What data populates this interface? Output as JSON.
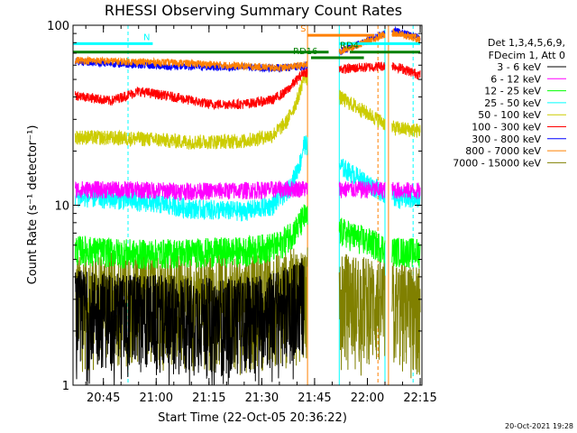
{
  "chart_data": {
    "type": "line",
    "title": "RHESSI Observing Summary Count Rates",
    "xlabel": "Start Time (22-Oct-05 20:36:22)",
    "ylabel": "Count Rate (s⁻¹ detector⁻¹)",
    "y_scale": "log",
    "ylim": [
      1,
      100
    ],
    "xlim": [
      "20:36:22",
      "22:15:30"
    ],
    "x_ticks": [
      "20:45",
      "21:00",
      "21:15",
      "21:30",
      "21:45",
      "22:00",
      "22:15"
    ],
    "y_ticks": [
      "1",
      "10",
      "100"
    ],
    "grid": false,
    "legend_position": "right",
    "legend_header": [
      "Det 1,3,4,5,6,9,",
      "FDecim 1, Att 0"
    ],
    "data_gaps": [
      [
        "21:43",
        "21:52"
      ],
      [
        "22:05",
        "22:07"
      ]
    ],
    "series": [
      {
        "name": "3 - 6 keV",
        "color": "#000000",
        "baseline": 2.6,
        "noise": 0.35,
        "points": [
          [
            "20:37",
            2.8
          ],
          [
            "20:50",
            2.7
          ],
          [
            "21:05",
            2.6
          ],
          [
            "21:20",
            2.5
          ],
          [
            "21:35",
            2.8
          ],
          [
            "21:42",
            3.3
          ]
        ]
      },
      {
        "name": "6 - 12 keV",
        "color": "#ff00ff",
        "baseline": 12.3,
        "noise": 0.07,
        "points": [
          [
            "20:37",
            12.3
          ],
          [
            "20:55",
            12.2
          ],
          [
            "21:10",
            12.0
          ],
          [
            "21:25",
            12.1
          ],
          [
            "21:40",
            12.4
          ],
          [
            "22:07",
            12.2
          ],
          [
            "22:15",
            12.0
          ]
        ]
      },
      {
        "name": "12 - 25 keV",
        "color": "#00ff00",
        "baseline": 5.6,
        "noise": 0.12,
        "points": [
          [
            "20:37",
            5.7
          ],
          [
            "20:55",
            5.4
          ],
          [
            "21:10",
            5.5
          ],
          [
            "21:25",
            5.6
          ],
          [
            "21:35",
            6.0
          ],
          [
            "21:40",
            7.5
          ],
          [
            "21:42",
            8.6
          ],
          [
            "22:07",
            5.6
          ],
          [
            "22:15",
            5.5
          ]
        ]
      },
      {
        "name": "25 - 50 keV",
        "color": "#00ffff",
        "baseline": 11.0,
        "noise": 0.08,
        "points": [
          [
            "20:37",
            11.2
          ],
          [
            "20:50",
            10.8
          ],
          [
            "21:00",
            10.3
          ],
          [
            "21:10",
            9.6
          ],
          [
            "21:25",
            9.3
          ],
          [
            "21:33",
            10.0
          ],
          [
            "21:38",
            12.5
          ],
          [
            "21:41",
            17.5
          ],
          [
            "21:42",
            22.0
          ],
          [
            "22:07",
            11.0
          ],
          [
            "22:15",
            10.8
          ]
        ]
      },
      {
        "name": "50 - 100 keV",
        "color": "#cccc00",
        "baseline": 24.0,
        "noise": 0.06,
        "points": [
          [
            "20:37",
            24.0
          ],
          [
            "20:55",
            23.5
          ],
          [
            "21:10",
            22.5
          ],
          [
            "21:25",
            22.8
          ],
          [
            "21:33",
            24.5
          ],
          [
            "21:37",
            29.0
          ],
          [
            "21:40",
            38.0
          ],
          [
            "21:42",
            52.0
          ],
          [
            "22:07",
            27.0
          ],
          [
            "22:15",
            26.0
          ]
        ]
      },
      {
        "name": "100 - 300 keV",
        "color": "#ff0000",
        "baseline": 40.0,
        "noise": 0.04,
        "points": [
          [
            "20:37",
            41.0
          ],
          [
            "20:47",
            38.0
          ],
          [
            "20:55",
            43.0
          ],
          [
            "21:05",
            40.0
          ],
          [
            "21:15",
            36.5
          ],
          [
            "21:25",
            36.5
          ],
          [
            "21:33",
            38.5
          ],
          [
            "21:37",
            43.0
          ],
          [
            "21:40",
            50.0
          ],
          [
            "21:42",
            55.0
          ],
          [
            "22:07",
            60.0
          ],
          [
            "22:15",
            53.0
          ]
        ]
      },
      {
        "name": "300 - 800 keV",
        "color": "#0000ff",
        "baseline": 60.0,
        "noise": 0.03,
        "points": [
          [
            "20:37",
            63.0
          ],
          [
            "20:50",
            61.0
          ],
          [
            "21:05",
            59.0
          ],
          [
            "21:20",
            58.5
          ],
          [
            "21:35",
            58.0
          ],
          [
            "21:42",
            59.0
          ],
          [
            "22:07",
            94.0
          ],
          [
            "22:15",
            85.0
          ]
        ]
      },
      {
        "name": "800 - 7000 keV",
        "color": "#ff8000",
        "baseline": 61.0,
        "noise": 0.03,
        "points": [
          [
            "20:37",
            64.0
          ],
          [
            "20:50",
            63.0
          ],
          [
            "21:05",
            62.0
          ],
          [
            "21:20",
            60.0
          ],
          [
            "21:35",
            58.0
          ],
          [
            "21:42",
            60.0
          ],
          [
            "22:07",
            92.0
          ],
          [
            "22:15",
            83.0
          ]
        ]
      },
      {
        "name": "7000 - 15000 keV",
        "color": "#808000",
        "baseline": 3.0,
        "noise": 0.4,
        "points": [
          [
            "20:37",
            3.2
          ],
          [
            "20:55",
            3.5
          ],
          [
            "21:10",
            3.3
          ],
          [
            "21:25",
            3.2
          ],
          [
            "21:42",
            3.6
          ],
          [
            "22:07",
            3.0
          ],
          [
            "22:15",
            2.8
          ]
        ]
      }
    ],
    "state_bars": [
      {
        "label": "N",
        "color": "#00ffff",
        "value": 79,
        "start": "20:36:22",
        "end": "20:59"
      },
      {
        "label": "",
        "color": "#00ffff",
        "value": 79,
        "start": "21:52",
        "end": "22:15"
      },
      {
        "label": "S",
        "color": "#ff8000",
        "value": 88,
        "start": "21:43",
        "end": "22:02"
      },
      {
        "label": "",
        "color": "#ff8000",
        "value": 88,
        "start": "22:07",
        "end": "22:14"
      },
      {
        "label": "RD4",
        "color": "#008000",
        "value": 71,
        "start": "20:36:22",
        "end": "21:49"
      },
      {
        "label": "",
        "color": "#008000",
        "value": 71,
        "start": "21:55",
        "end": "22:15"
      },
      {
        "label": "RD16",
        "color": "#008000",
        "value": 66,
        "start": "21:44",
        "end": "21:59"
      }
    ],
    "vertical_markers": [
      {
        "time": "20:36:22",
        "color": "#00ffff",
        "style": "solid"
      },
      {
        "time": "20:52",
        "color": "#00ffff",
        "style": "dashed"
      },
      {
        "time": "21:43",
        "color": "#ff8000",
        "style": "solid"
      },
      {
        "time": "21:52",
        "color": "#00ffff",
        "style": "solid"
      },
      {
        "time": "22:03",
        "color": "#ff8000",
        "style": "dashed"
      },
      {
        "time": "22:05",
        "color": "#00ffff",
        "style": "solid"
      },
      {
        "time": "22:06",
        "color": "#ff8000",
        "style": "solid"
      },
      {
        "time": "22:13",
        "color": "#00ffff",
        "style": "dashed"
      }
    ],
    "timestamp": "20-Oct-2021 19:28"
  }
}
